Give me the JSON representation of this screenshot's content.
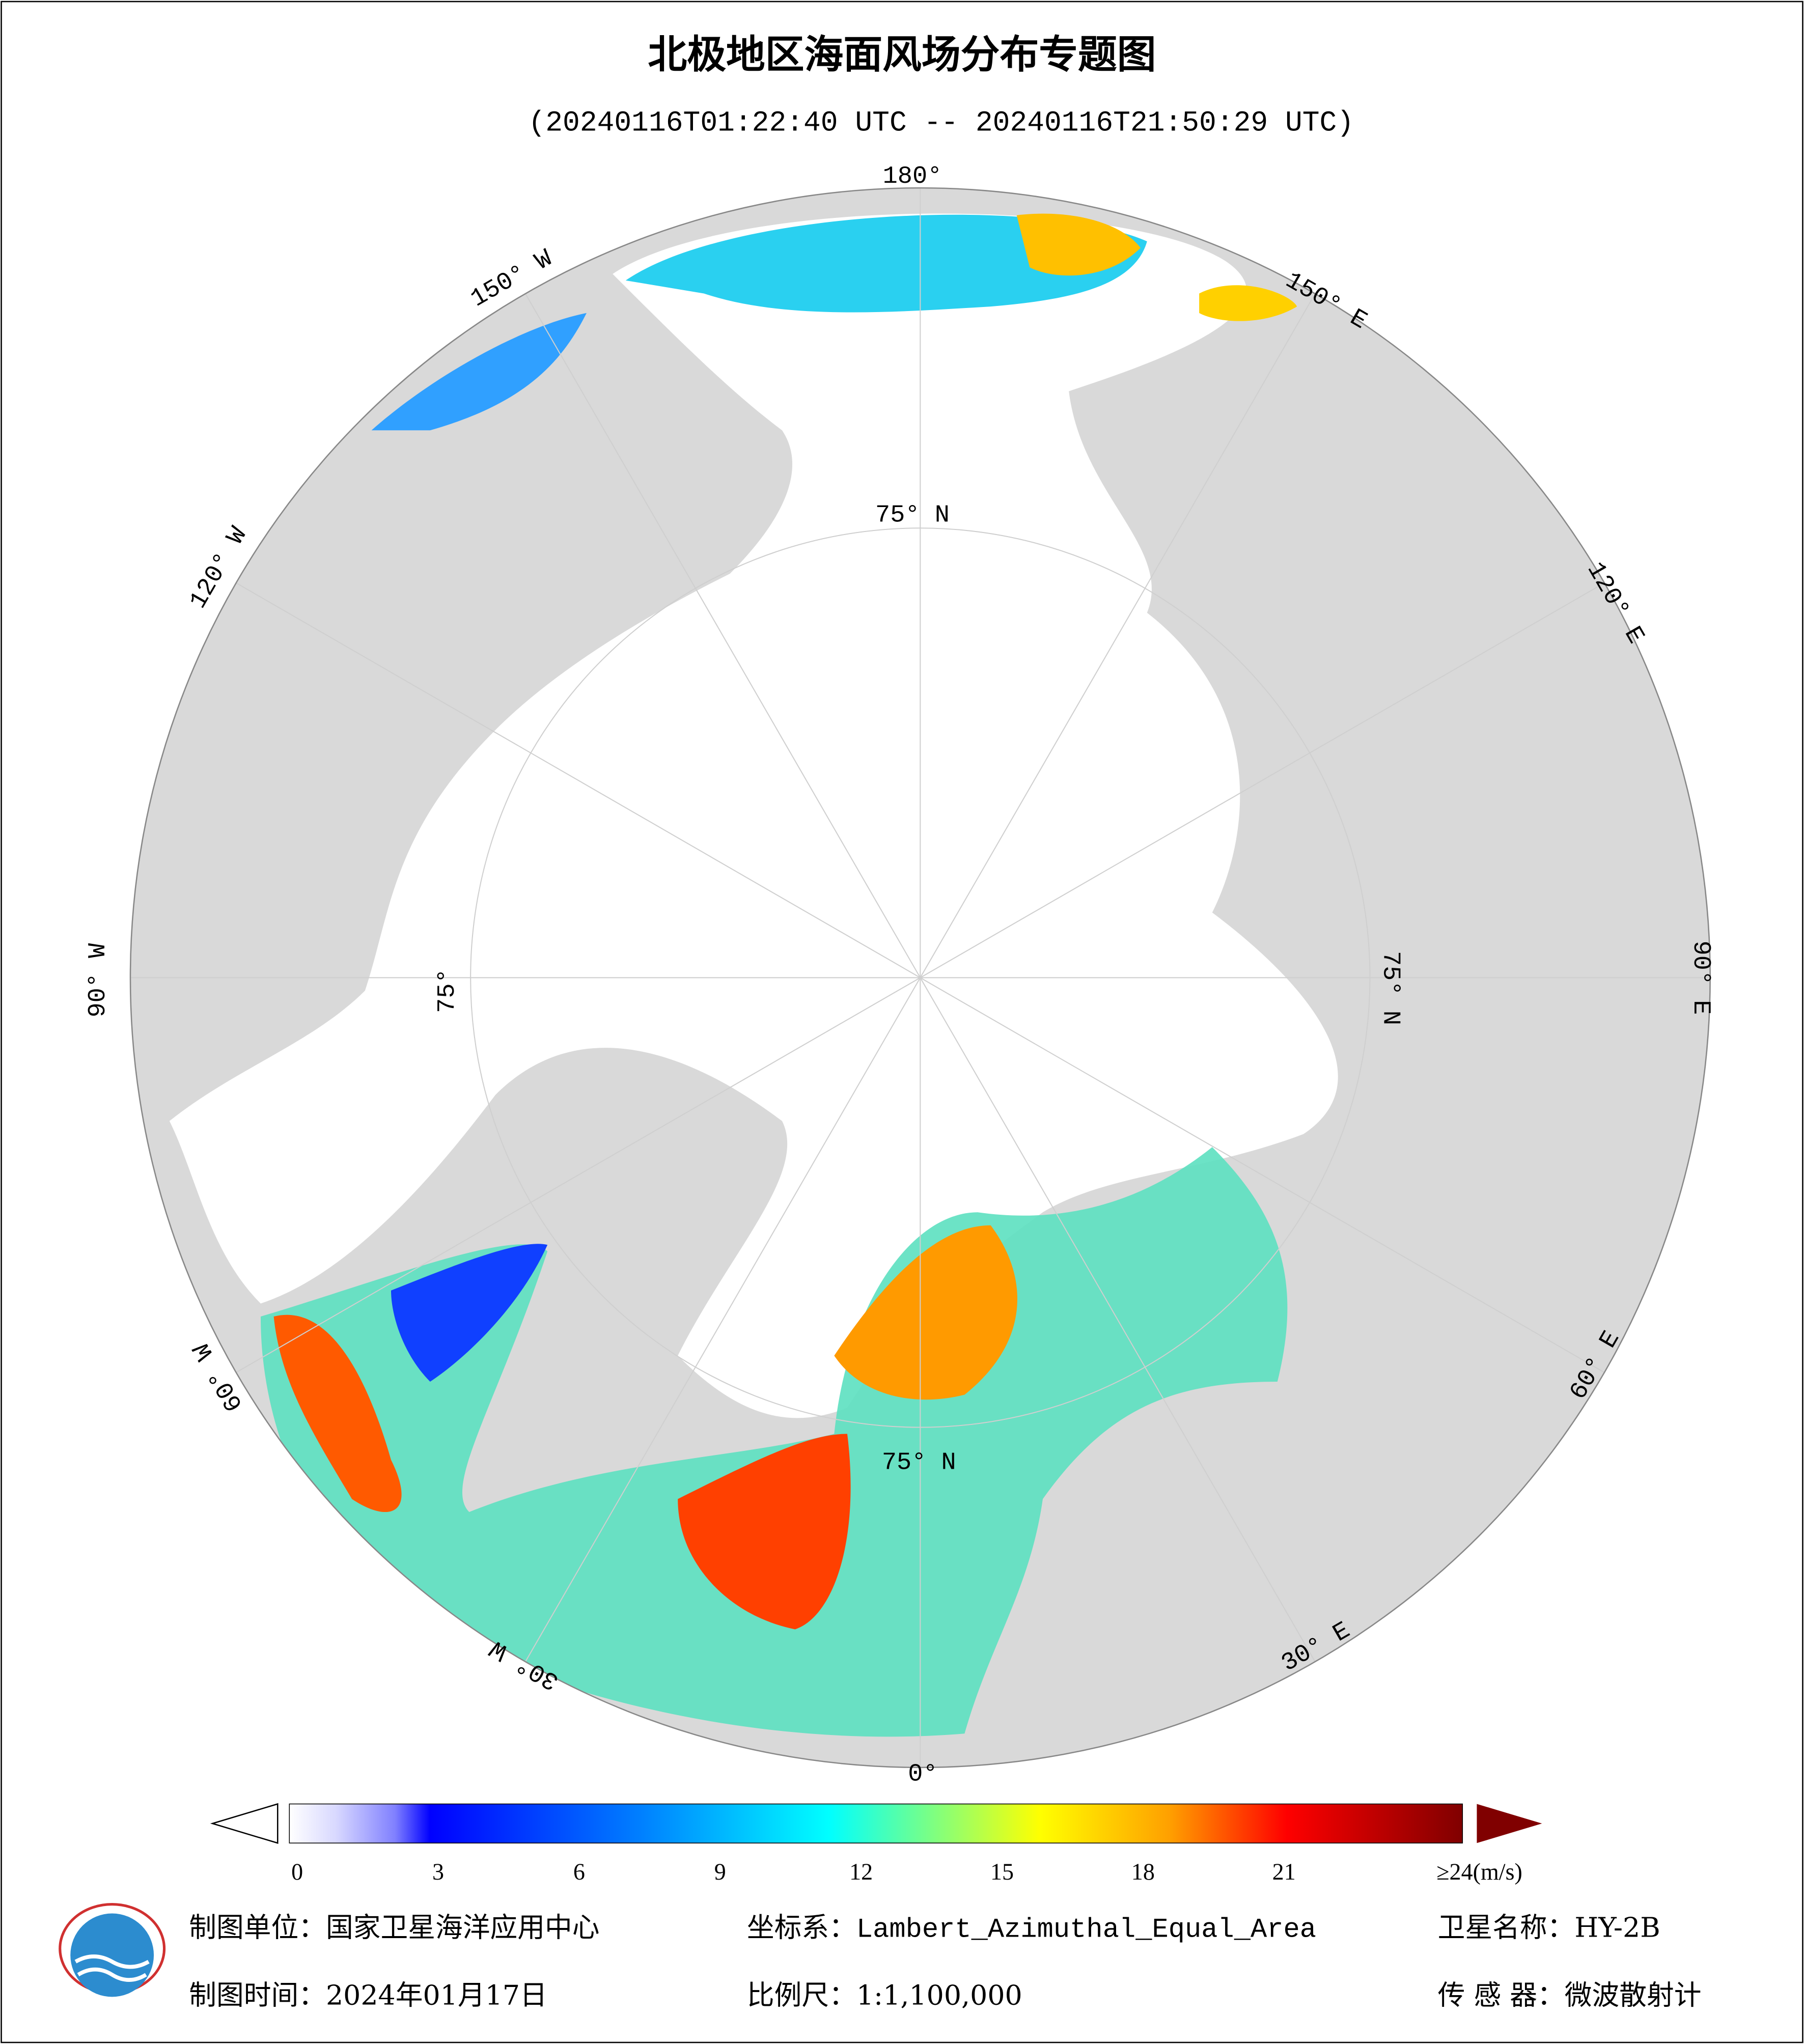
{
  "title": "北极地区海面风场分布专题图",
  "subtitle": "(20240116T01:22:40 UTC -- 20240116T21:50:29 UTC)",
  "longitude_labels": [
    "180°",
    "150° E",
    "120° E",
    "90° E",
    "60° E",
    "30° E",
    "0°",
    "30° W",
    "60° W",
    "90° W",
    "120° W",
    "150° W"
  ],
  "latitude_labels": [
    "75° N",
    "75° N",
    "75°",
    "75° N"
  ],
  "colorbar": {
    "ticks": [
      0,
      3,
      6,
      9,
      12,
      15,
      18,
      21
    ],
    "max_label": "≥24(m/s)"
  },
  "footer": {
    "unit": "制图单位：国家卫星海洋应用中心",
    "coordinate_system": "坐标系：Lambert_Azimuthal_Equal_Area",
    "satellite": "卫星名称：HY-2B",
    "date": "制图时间：2024年01月17日",
    "scale": "比例尺：1:1,100,000",
    "sensor": "传 感 器：微波散射计"
  }
}
